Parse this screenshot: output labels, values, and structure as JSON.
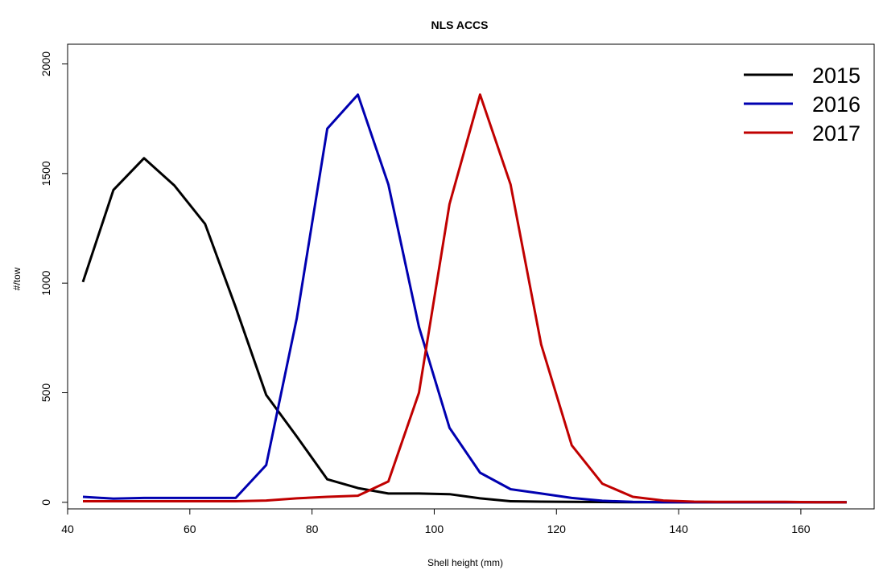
{
  "chart_data": {
    "type": "line",
    "title": "NLS ACCS",
    "xlabel": "Shell height (mm)",
    "ylabel": "#/tow",
    "xlim": [
      40,
      172
    ],
    "ylim": [
      -30,
      2090
    ],
    "xticks": [
      40,
      60,
      80,
      100,
      120,
      140,
      160
    ],
    "yticks": [
      0,
      500,
      1000,
      1500,
      2000
    ],
    "grid": false,
    "legend_position": "top-right",
    "series": [
      {
        "name": "2015",
        "color": "#000000",
        "x": [
          42.5,
          47.5,
          52.5,
          57.5,
          62.5,
          67.5,
          72.5,
          77.5,
          82.5,
          87.5,
          92.5,
          97.5,
          102.5,
          107.5,
          112.5,
          117.5,
          122.5,
          127.5,
          132.5,
          137.5,
          142.5,
          147.5,
          152.5,
          157.5,
          162.5,
          167.5
        ],
        "y": [
          1005,
          1425,
          1570,
          1445,
          1270,
          890,
          490,
          300,
          105,
          65,
          40,
          40,
          37,
          18,
          5,
          3,
          2,
          1,
          0,
          0,
          0,
          0,
          0,
          0,
          0,
          0
        ]
      },
      {
        "name": "2016",
        "color": "#0000b0",
        "x": [
          42.5,
          47.5,
          52.5,
          57.5,
          62.5,
          67.5,
          72.5,
          77.5,
          82.5,
          87.5,
          92.5,
          97.5,
          102.5,
          107.5,
          112.5,
          117.5,
          122.5,
          127.5,
          132.5,
          137.5,
          142.5,
          147.5,
          152.5,
          157.5,
          162.5,
          167.5
        ],
        "y": [
          25,
          17,
          20,
          20,
          20,
          20,
          170,
          840,
          1705,
          1860,
          1450,
          800,
          340,
          135,
          60,
          40,
          20,
          7,
          2,
          0,
          0,
          0,
          0,
          0,
          0,
          0
        ]
      },
      {
        "name": "2017",
        "color": "#c00000",
        "x": [
          42.5,
          47.5,
          52.5,
          57.5,
          62.5,
          67.5,
          72.5,
          77.5,
          82.5,
          87.5,
          92.5,
          97.5,
          102.5,
          107.5,
          112.5,
          117.5,
          122.5,
          127.5,
          132.5,
          137.5,
          142.5,
          147.5,
          152.5,
          157.5,
          162.5,
          167.5
        ],
        "y": [
          5,
          5,
          5,
          5,
          5,
          5,
          8,
          18,
          25,
          30,
          95,
          500,
          1360,
          1860,
          1450,
          720,
          260,
          85,
          25,
          8,
          3,
          2,
          2,
          2,
          0,
          0
        ]
      }
    ]
  }
}
